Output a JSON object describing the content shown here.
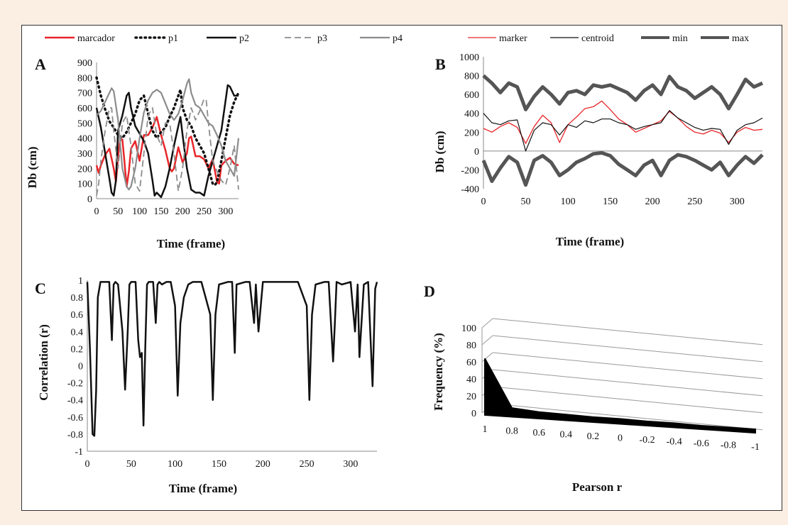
{
  "colors": {
    "red": "#e8262a",
    "black": "#111111",
    "gray": "#8c8c8c",
    "dark_gray": "#555555",
    "background": "#fbeee3"
  },
  "chart_data": [
    {
      "panel": "A",
      "type": "line",
      "xlabel": "Time (frame)",
      "ylabel": "Db (cm)",
      "xlim": [
        0,
        330
      ],
      "ylim": [
        0,
        900
      ],
      "xticks": [
        "0",
        "50",
        "100",
        "150",
        "200",
        "250",
        "300"
      ],
      "yticks": [
        "0",
        "100",
        "200",
        "300",
        "400",
        "500",
        "600",
        "700",
        "800",
        "900"
      ],
      "grid": false,
      "legend": "top",
      "series": [
        {
          "name": "marcador",
          "style": "solid-red",
          "x": [
            0,
            5,
            10,
            20,
            30,
            40,
            45,
            50,
            55,
            60,
            65,
            70,
            75,
            80,
            90,
            100,
            110,
            120,
            130,
            140,
            150,
            160,
            170,
            175,
            180,
            190,
            200,
            210,
            215,
            220,
            230,
            240,
            250,
            260,
            270,
            280,
            285,
            290,
            300,
            310,
            320,
            330
          ],
          "y": [
            220,
            170,
            220,
            290,
            330,
            200,
            110,
            270,
            400,
            390,
            240,
            80,
            180,
            330,
            380,
            250,
            420,
            420,
            470,
            540,
            420,
            320,
            200,
            180,
            200,
            340,
            240,
            300,
            400,
            410,
            280,
            280,
            260,
            200,
            260,
            110,
            100,
            220,
            250,
            270,
            230,
            220
          ]
        },
        {
          "name": "p1",
          "style": "dotted-black",
          "x": [
            0,
            10,
            20,
            30,
            40,
            50,
            60,
            70,
            80,
            90,
            100,
            110,
            120,
            130,
            140,
            150,
            160,
            170,
            180,
            190,
            195,
            200,
            210,
            220,
            230,
            240,
            250,
            260,
            270,
            275,
            280,
            290,
            300,
            310,
            320,
            330
          ],
          "y": [
            800,
            680,
            590,
            510,
            470,
            420,
            400,
            440,
            500,
            560,
            650,
            680,
            560,
            450,
            400,
            440,
            470,
            540,
            600,
            680,
            720,
            600,
            520,
            480,
            400,
            350,
            300,
            200,
            100,
            90,
            110,
            250,
            400,
            550,
            640,
            700
          ]
        },
        {
          "name": "p2",
          "style": "solid-black",
          "x": [
            0,
            10,
            20,
            30,
            35,
            40,
            45,
            50,
            60,
            70,
            75,
            80,
            90,
            100,
            110,
            120,
            130,
            135,
            140,
            150,
            160,
            170,
            180,
            190,
            195,
            200,
            210,
            220,
            230,
            240,
            250,
            260,
            270,
            280,
            290,
            300,
            305,
            310,
            320,
            330
          ],
          "y": [
            600,
            470,
            300,
            130,
            40,
            20,
            120,
            450,
            550,
            680,
            700,
            600,
            480,
            430,
            380,
            300,
            120,
            20,
            40,
            10,
            80,
            200,
            350,
            480,
            540,
            420,
            200,
            60,
            40,
            40,
            20,
            150,
            250,
            350,
            450,
            650,
            750,
            740,
            680,
            680
          ]
        },
        {
          "name": "p3",
          "style": "dashed-gray",
          "x": [
            0,
            5,
            10,
            20,
            30,
            35,
            40,
            50,
            60,
            70,
            80,
            90,
            100,
            110,
            120,
            130,
            140,
            150,
            160,
            170,
            180,
            190,
            200,
            210,
            220,
            230,
            240,
            250,
            255,
            260,
            270,
            280,
            290,
            300,
            310,
            320,
            330
          ],
          "y": [
            20,
            100,
            250,
            450,
            600,
            600,
            450,
            200,
            500,
            550,
            350,
            100,
            50,
            300,
            550,
            600,
            420,
            350,
            500,
            500,
            300,
            50,
            200,
            450,
            600,
            520,
            580,
            660,
            650,
            500,
            250,
            180,
            120,
            90,
            200,
            350,
            60
          ]
        },
        {
          "name": "p4",
          "style": "solid-gray",
          "x": [
            0,
            10,
            20,
            30,
            35,
            40,
            50,
            60,
            70,
            75,
            80,
            90,
            100,
            110,
            120,
            130,
            140,
            150,
            160,
            170,
            180,
            190,
            200,
            210,
            215,
            220,
            230,
            240,
            250,
            260,
            270,
            280,
            290,
            300,
            310,
            320,
            330
          ],
          "y": [
            550,
            580,
            640,
            700,
            730,
            710,
            520,
            200,
            80,
            60,
            80,
            200,
            400,
            570,
            650,
            700,
            720,
            700,
            630,
            560,
            520,
            560,
            650,
            760,
            790,
            700,
            620,
            600,
            550,
            500,
            480,
            420,
            350,
            250,
            200,
            150,
            400
          ]
        }
      ]
    },
    {
      "panel": "B",
      "type": "line",
      "xlabel": "Time (frame)",
      "ylabel": "Db (cm)",
      "xlim": [
        0,
        330
      ],
      "ylim": [
        -400,
        1000
      ],
      "xticks": [
        "0",
        "50",
        "100",
        "150",
        "200",
        "250",
        "300"
      ],
      "yticks": [
        "-400",
        "-200",
        "0",
        "200",
        "400",
        "600",
        "800",
        "1000"
      ],
      "grid": false,
      "legend": "top",
      "series": [
        {
          "name": "marker",
          "style": "thin-red",
          "x": [
            0,
            10,
            20,
            30,
            40,
            50,
            60,
            70,
            80,
            90,
            100,
            110,
            120,
            130,
            140,
            150,
            160,
            170,
            180,
            190,
            200,
            210,
            220,
            230,
            240,
            250,
            260,
            270,
            280,
            290,
            300,
            310,
            320,
            330
          ],
          "y": [
            240,
            200,
            260,
            300,
            250,
            80,
            260,
            380,
            300,
            90,
            280,
            360,
            450,
            470,
            530,
            440,
            340,
            280,
            200,
            240,
            280,
            320,
            420,
            350,
            260,
            200,
            180,
            220,
            190,
            90,
            200,
            250,
            220,
            230
          ]
        },
        {
          "name": "centroid",
          "style": "thin-black",
          "x": [
            0,
            10,
            20,
            30,
            40,
            50,
            60,
            70,
            80,
            90,
            100,
            110,
            120,
            130,
            140,
            150,
            160,
            170,
            180,
            190,
            200,
            210,
            220,
            230,
            240,
            250,
            260,
            270,
            280,
            290,
            300,
            310,
            320,
            330
          ],
          "y": [
            400,
            300,
            280,
            320,
            330,
            0,
            220,
            300,
            280,
            170,
            280,
            250,
            320,
            300,
            340,
            340,
            300,
            280,
            230,
            260,
            280,
            300,
            430,
            350,
            300,
            250,
            220,
            240,
            230,
            70,
            220,
            280,
            300,
            350
          ]
        },
        {
          "name": "min",
          "style": "thick-dark-gray",
          "x": [
            0,
            10,
            20,
            30,
            40,
            50,
            60,
            70,
            80,
            90,
            100,
            110,
            120,
            130,
            140,
            150,
            160,
            170,
            180,
            190,
            200,
            210,
            220,
            230,
            240,
            250,
            260,
            270,
            280,
            290,
            300,
            310,
            320,
            330
          ],
          "y": [
            -100,
            -320,
            -180,
            -60,
            -120,
            -360,
            -100,
            -50,
            -120,
            -260,
            -200,
            -120,
            -80,
            -30,
            -20,
            -50,
            -140,
            -200,
            -260,
            -150,
            -100,
            -260,
            -100,
            -40,
            -60,
            -100,
            -150,
            -200,
            -120,
            -260,
            -150,
            -60,
            -130,
            -40
          ]
        },
        {
          "name": "max",
          "style": "thick-dark-gray",
          "x": [
            0,
            10,
            20,
            30,
            40,
            50,
            60,
            70,
            80,
            90,
            100,
            110,
            120,
            130,
            140,
            150,
            160,
            170,
            180,
            190,
            200,
            210,
            220,
            230,
            240,
            250,
            260,
            270,
            280,
            290,
            300,
            310,
            320,
            330
          ],
          "y": [
            800,
            720,
            620,
            720,
            680,
            440,
            580,
            680,
            600,
            500,
            620,
            640,
            600,
            700,
            680,
            700,
            660,
            620,
            540,
            640,
            700,
            600,
            790,
            680,
            640,
            560,
            620,
            680,
            600,
            450,
            600,
            760,
            680,
            720
          ]
        }
      ]
    },
    {
      "panel": "C",
      "type": "line",
      "xlabel": "Time (frame)",
      "ylabel": "Correlation (r)",
      "xlim": [
        0,
        330
      ],
      "ylim": [
        -1,
        1
      ],
      "xticks": [
        "0",
        "50",
        "100",
        "150",
        "200",
        "250",
        "300"
      ],
      "yticks": [
        "-1",
        "-0.8",
        "-0.6",
        "-0.4",
        "-0.2",
        "0",
        "0.2",
        "0.4",
        "0.6",
        "0.8",
        "1"
      ],
      "grid": false,
      "series": [
        {
          "name": "",
          "style": "solid-black",
          "x": [
            0,
            3,
            6,
            8,
            10,
            12,
            15,
            25,
            28,
            30,
            32,
            35,
            40,
            43,
            46,
            48,
            50,
            55,
            58,
            60,
            62,
            64,
            66,
            68,
            70,
            75,
            78,
            80,
            82,
            85,
            90,
            95,
            100,
            103,
            106,
            110,
            115,
            120,
            130,
            140,
            143,
            146,
            150,
            160,
            165,
            168,
            170,
            180,
            185,
            190,
            192,
            195,
            200,
            210,
            220,
            230,
            240,
            250,
            253,
            256,
            260,
            270,
            275,
            280,
            282,
            284,
            290,
            300,
            305,
            308,
            310,
            315,
            320,
            325,
            328,
            330
          ],
          "y": [
            0.98,
            0.2,
            -0.8,
            -0.82,
            -0.3,
            0.8,
            0.98,
            0.98,
            0.3,
            0.95,
            0.98,
            0.95,
            0.4,
            -0.28,
            0.4,
            0.95,
            0.98,
            0.98,
            0.3,
            0.1,
            0.15,
            -0.7,
            0.2,
            0.95,
            0.98,
            0.98,
            0.5,
            0.95,
            0.98,
            0.95,
            0.98,
            0.98,
            0.7,
            -0.35,
            0.5,
            0.8,
            0.95,
            0.98,
            0.98,
            0.6,
            -0.4,
            0.6,
            0.95,
            0.98,
            0.98,
            0.15,
            0.95,
            0.98,
            0.98,
            0.5,
            0.95,
            0.4,
            0.98,
            0.98,
            0.98,
            0.98,
            0.98,
            0.7,
            -0.4,
            0.6,
            0.95,
            0.98,
            0.98,
            0.05,
            0.5,
            0.98,
            0.95,
            0.98,
            0.4,
            0.95,
            0.1,
            0.95,
            0.98,
            -0.24,
            0.9,
            0.98
          ]
        }
      ]
    },
    {
      "panel": "D",
      "type": "area",
      "xlabel": "Pearson r",
      "ylabel": "Frequency (%)",
      "categories": [
        "1",
        "0.8",
        "0.6",
        "0.4",
        "0.2",
        "0",
        "-0.2",
        "-0.4",
        "-0.6",
        "-0.8",
        "-1"
      ],
      "values": [
        72,
        8,
        5,
        4,
        3,
        3,
        2,
        2,
        1,
        1,
        1
      ],
      "ylim": [
        0,
        100
      ],
      "yticks": [
        "0",
        "20",
        "40",
        "60",
        "80",
        "100"
      ],
      "grid": true
    }
  ]
}
